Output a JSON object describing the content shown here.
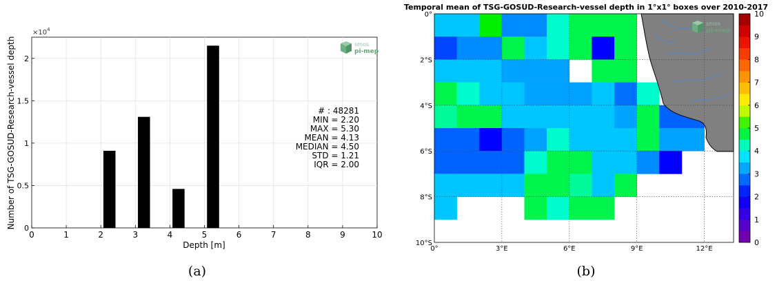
{
  "chart_data": [
    {
      "type": "bar",
      "panel_label": "(a)",
      "xlabel": "Depth [m]",
      "ylabel": "Number of TSG-GOSUD-Research-vessel depth",
      "y_exponent": "×10",
      "y_exponent_power": "4",
      "xlim": [
        0,
        10
      ],
      "ylim": [
        0,
        22500
      ],
      "x_ticks": [
        0,
        1,
        2,
        3,
        4,
        5,
        6,
        7,
        8,
        9,
        10
      ],
      "x_tick_labels": [
        "0",
        "1",
        "2",
        "3",
        "4",
        "5",
        "6",
        "7",
        "8",
        "9",
        "10"
      ],
      "y_ticks": [
        0,
        5000,
        10000,
        15000,
        20000
      ],
      "y_tick_labels": [
        "0",
        "0.5",
        "1",
        "1.5",
        "2"
      ],
      "bar_width": 0.35,
      "x": [
        2.25,
        3.25,
        4.25,
        5.25
      ],
      "values": [
        9100,
        13100,
        4600,
        21500
      ],
      "grid": true,
      "stats": [
        "# : 48281",
        "MIN = 2.20",
        "MAX =  5.30",
        "MEAN = 4.13",
        "MEDIAN = 4.50",
        "STD = 1.21",
        "IQR = 2.00"
      ],
      "logo": [
        "smos",
        "pi-mep"
      ],
      "bar_color": "#000000"
    },
    {
      "type": "heatmap",
      "panel_label": "(b)",
      "title": "Temporal mean of TSG-GOSUD-Research-vessel depth in 1°x1° boxes over 2010-2017",
      "x_tick_labels": [
        "0°",
        "3°E",
        "6°E",
        "9°E",
        "12°E"
      ],
      "y_tick_labels": [
        "0°",
        "2°S",
        "4°S",
        "6°S",
        "8°S",
        "10°S"
      ],
      "lon_range": [
        0,
        13.3
      ],
      "lat_range": [
        0,
        -10
      ],
      "colorbar_ticks": [
        "0",
        "1",
        "2",
        "3",
        "4",
        "5",
        "6",
        "7",
        "8",
        "9",
        "10"
      ],
      "colorbar_range": [
        0,
        10
      ],
      "grid": true,
      "logo": [
        "smos",
        "pi-mep"
      ],
      "cells": [
        [
          3.5,
          3.5,
          5.0,
          3.0,
          3.0,
          4.2,
          4.7,
          4.7,
          4.7,
          null
        ],
        [
          2.5,
          3.0,
          3.0,
          4.7,
          3.5,
          4.2,
          4.7,
          2.0,
          4.7,
          null
        ],
        [
          3.5,
          3.5,
          3.5,
          3.2,
          3.2,
          3.2,
          null,
          4.7,
          4.7,
          null
        ],
        [
          4.7,
          4.2,
          3.5,
          3.5,
          3.2,
          3.2,
          3.2,
          3.5,
          2.8,
          4.2,
          null
        ],
        [
          4.4,
          4.7,
          4.7,
          3.5,
          3.5,
          3.5,
          3.5,
          3.5,
          3.2,
          4.7,
          2.7,
          2.7
        ],
        [
          2.7,
          2.7,
          2.0,
          2.7,
          3.2,
          4.2,
          3.5,
          3.5,
          3.5,
          4.7,
          3.2,
          3.2
        ],
        [
          2.7,
          2.7,
          2.7,
          2.7,
          4.2,
          4.7,
          4.7,
          3.5,
          3.5,
          3.0,
          2.0,
          null
        ],
        [
          3.5,
          3.5,
          3.5,
          3.5,
          4.7,
          4.7,
          4.4,
          3.5,
          4.7,
          null
        ],
        [
          3.5,
          null,
          null,
          null,
          4.7,
          4.2,
          4.7,
          4.7,
          null,
          null
        ]
      ],
      "land_color": "#808080",
      "river_color": "#4a86c8"
    }
  ]
}
